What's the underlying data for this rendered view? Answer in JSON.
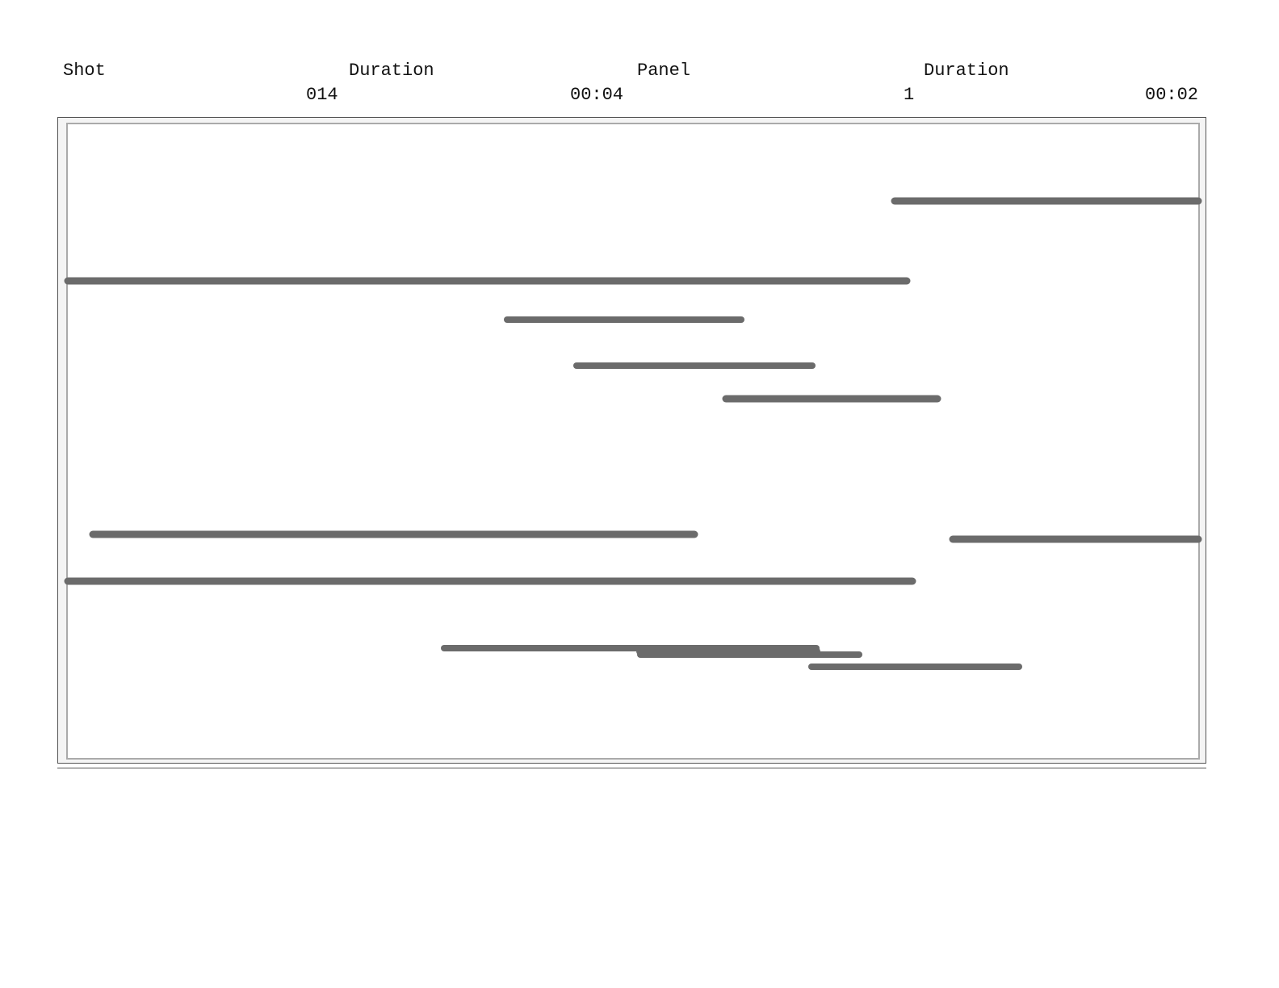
{
  "header": {
    "shot_label": "Shot",
    "shot_value": "014",
    "shot_duration_label": "Duration",
    "shot_duration_value": "00:04",
    "panel_label": "Panel",
    "panel_value": "1",
    "panel_duration_label": "Duration",
    "panel_duration_value": "00:02"
  },
  "panel": {
    "stroke_color": "#6b6b6b",
    "frame_color": "#aaaaaa"
  }
}
